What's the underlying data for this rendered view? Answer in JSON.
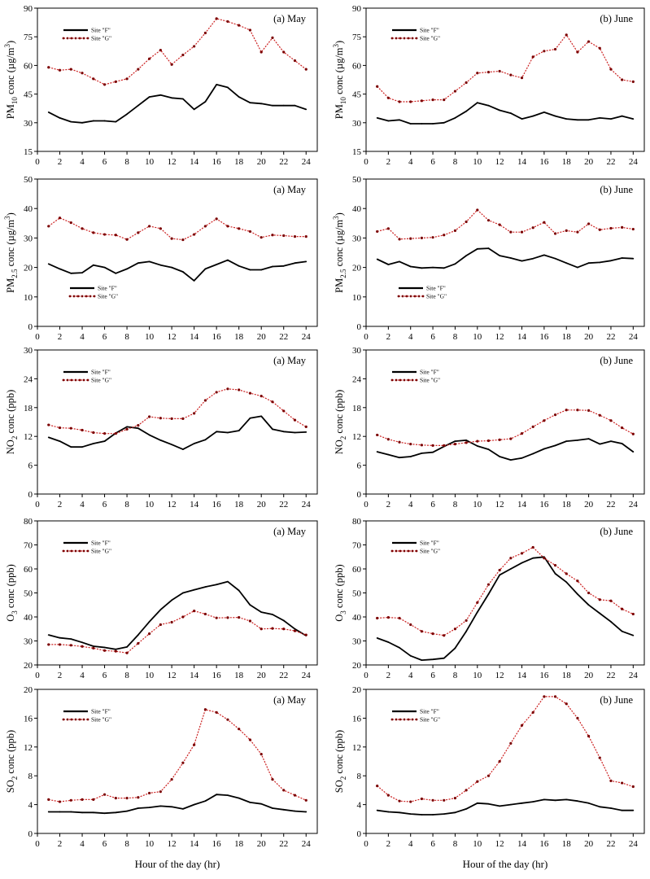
{
  "colors": {
    "site_f": "#000000",
    "site_g": "#cc2222",
    "marker_g": "#7a0000"
  },
  "chart_data": [
    {
      "type": "line",
      "row": 0,
      "col": 0,
      "title": "(a) May",
      "ylabel_pre": "PM",
      "ylabel_sub": "10",
      "ylabel_post": " conc (µg/m",
      "ylabel_sup": "3",
      "ylabel_end": ")",
      "xlabel": "",
      "ylim": [
        15,
        90
      ],
      "yticks": [
        15,
        30,
        45,
        60,
        75,
        90
      ],
      "xlim": [
        0,
        25
      ],
      "xticks": [
        0,
        2,
        4,
        6,
        8,
        10,
        12,
        14,
        16,
        18,
        20,
        22,
        24
      ],
      "legend_position": "top-left",
      "x": [
        1,
        2,
        3,
        4,
        5,
        6,
        7,
        8,
        9,
        10,
        11,
        12,
        13,
        14,
        15,
        16,
        17,
        18,
        19,
        20,
        21,
        22,
        23,
        24
      ],
      "series": [
        {
          "name": "Site \"F\"",
          "values": [
            35.5,
            32.5,
            30.5,
            30,
            31,
            31,
            30.5,
            34.5,
            39,
            43.5,
            44.5,
            43,
            42.5,
            37,
            41,
            50,
            48.5,
            43.5,
            40.5,
            40,
            39,
            39,
            39,
            37
          ]
        },
        {
          "name": "Site \"G\"",
          "values": [
            59,
            57.5,
            58,
            56,
            53,
            50,
            51.5,
            53,
            58,
            63.5,
            68,
            60.5,
            65.5,
            70,
            77,
            84.5,
            83,
            81,
            78.5,
            67,
            74.5,
            67,
            62.5,
            58
          ]
        }
      ]
    },
    {
      "type": "line",
      "row": 0,
      "col": 1,
      "title": "(b) June",
      "ylabel_pre": "PM",
      "ylabel_sub": "10",
      "ylabel_post": " conc (µg/m",
      "ylabel_sup": "3",
      "ylabel_end": ")",
      "xlabel": "",
      "ylim": [
        15,
        90
      ],
      "yticks": [
        15,
        30,
        45,
        60,
        75,
        90
      ],
      "xlim": [
        0,
        25
      ],
      "xticks": [
        0,
        2,
        4,
        6,
        8,
        10,
        12,
        14,
        16,
        18,
        20,
        22,
        24
      ],
      "legend_position": "top-left",
      "x": [
        1,
        2,
        3,
        4,
        5,
        6,
        7,
        8,
        9,
        10,
        11,
        12,
        13,
        14,
        15,
        16,
        17,
        18,
        19,
        20,
        21,
        22,
        23,
        24
      ],
      "series": [
        {
          "name": "Site \"F\"",
          "values": [
            32.5,
            31,
            31.5,
            29.5,
            29.5,
            29.5,
            30,
            32.5,
            36,
            40.5,
            39,
            36.5,
            35,
            32,
            33.5,
            35.5,
            33.5,
            32,
            31.5,
            31.5,
            32.5,
            32,
            33.5,
            32
          ]
        },
        {
          "name": "Site \"G\"",
          "values": [
            49,
            43,
            41,
            41,
            41.5,
            42,
            42,
            46.5,
            51,
            56,
            56.5,
            57,
            55,
            53.5,
            64.5,
            67.5,
            68.5,
            76,
            67,
            72.5,
            69,
            58,
            52.5,
            51.5
          ]
        }
      ]
    },
    {
      "type": "line",
      "row": 1,
      "col": 0,
      "title": "(a) May",
      "ylabel_pre": "PM",
      "ylabel_sub": "2.5",
      "ylabel_post": " conc (µg/m",
      "ylabel_sup": "3",
      "ylabel_end": ")",
      "xlabel": "",
      "ylim": [
        0,
        50
      ],
      "yticks": [
        0,
        10,
        20,
        30,
        40,
        50
      ],
      "xlim": [
        0,
        25
      ],
      "xticks": [
        0,
        2,
        4,
        6,
        8,
        10,
        12,
        14,
        16,
        18,
        20,
        22,
        24
      ],
      "legend_position": "bottom-left",
      "x": [
        1,
        2,
        3,
        4,
        5,
        6,
        7,
        8,
        9,
        10,
        11,
        12,
        13,
        14,
        15,
        16,
        17,
        18,
        19,
        20,
        21,
        22,
        23,
        24
      ],
      "series": [
        {
          "name": "Site \"F\"",
          "values": [
            21.2,
            19.5,
            18,
            18.2,
            20.8,
            20,
            18,
            19.5,
            21.5,
            22,
            20.8,
            20,
            18.5,
            15.5,
            19.5,
            21,
            22.5,
            20.5,
            19.2,
            19.2,
            20.3,
            20.5,
            21.5,
            22
          ]
        },
        {
          "name": "Site \"G\"",
          "values": [
            34,
            36.8,
            35.2,
            33.2,
            31.8,
            31.2,
            31,
            29.5,
            31.8,
            34,
            33.2,
            29.8,
            29.4,
            31.2,
            34,
            36.5,
            34,
            33.2,
            32.2,
            30.2,
            31,
            30.8,
            30.5,
            30.5
          ]
        }
      ]
    },
    {
      "type": "line",
      "row": 1,
      "col": 1,
      "title": "(b) June",
      "ylabel_pre": "PM",
      "ylabel_sub": "2.5",
      "ylabel_post": " conc (µg/m",
      "ylabel_sup": "3",
      "ylabel_end": ")",
      "xlabel": "",
      "ylim": [
        0,
        50
      ],
      "yticks": [
        0,
        10,
        20,
        30,
        40,
        50
      ],
      "xlim": [
        0,
        25
      ],
      "xticks": [
        0,
        2,
        4,
        6,
        8,
        10,
        12,
        14,
        16,
        18,
        20,
        22,
        24
      ],
      "legend_position": "bottom-left",
      "x": [
        1,
        2,
        3,
        4,
        5,
        6,
        7,
        8,
        9,
        10,
        11,
        12,
        13,
        14,
        15,
        16,
        17,
        18,
        19,
        20,
        21,
        22,
        23,
        24
      ],
      "series": [
        {
          "name": "Site \"F\"",
          "values": [
            22.8,
            21,
            22,
            20.3,
            19.8,
            20,
            19.8,
            21.2,
            24,
            26.3,
            26.5,
            24,
            23.2,
            22.2,
            23,
            24.2,
            23,
            21.5,
            20,
            21.5,
            21.7,
            22.3,
            23.2,
            23
          ]
        },
        {
          "name": "Site \"G\"",
          "values": [
            32.2,
            33.2,
            29.6,
            29.8,
            30,
            30.2,
            31,
            32.5,
            35.5,
            39.5,
            36,
            34.5,
            32,
            32,
            33.5,
            35.3,
            31.5,
            32.5,
            32,
            34.8,
            32.8,
            33.3,
            33.6,
            33
          ]
        }
      ]
    },
    {
      "type": "line",
      "row": 2,
      "col": 0,
      "title": "(a) May",
      "ylabel_pre": "NO",
      "ylabel_sub": "2",
      "ylabel_post": " conc (ppb)",
      "ylabel_sup": "",
      "ylabel_end": "",
      "xlabel": "",
      "ylim": [
        0,
        30
      ],
      "yticks": [
        0,
        6,
        12,
        18,
        24,
        30
      ],
      "xlim": [
        0,
        25
      ],
      "xticks": [
        0,
        2,
        4,
        6,
        8,
        10,
        12,
        14,
        16,
        18,
        20,
        22,
        24
      ],
      "legend_position": "top-left",
      "x": [
        1,
        2,
        3,
        4,
        5,
        6,
        7,
        8,
        9,
        10,
        11,
        12,
        13,
        14,
        15,
        16,
        17,
        18,
        19,
        20,
        21,
        22,
        23,
        24
      ],
      "series": [
        {
          "name": "Site \"F\"",
          "values": [
            11.8,
            11,
            9.8,
            9.8,
            10.5,
            11,
            12.7,
            14,
            13.7,
            12.3,
            11.2,
            10.3,
            9.3,
            10.5,
            11.3,
            13,
            12.8,
            13.2,
            15.8,
            16.2,
            13.5,
            13,
            12.8,
            12.9
          ]
        },
        {
          "name": "Site \"G\"",
          "values": [
            14.4,
            13.8,
            13.7,
            13.3,
            12.8,
            12.6,
            12.6,
            13.5,
            14.3,
            16.1,
            15.8,
            15.7,
            15.7,
            16.8,
            19.5,
            21.2,
            21.9,
            21.7,
            21,
            20.4,
            19.2,
            17.3,
            15.4,
            14
          ]
        }
      ]
    },
    {
      "type": "line",
      "row": 2,
      "col": 1,
      "title": "(b) June",
      "ylabel_pre": "NO",
      "ylabel_sub": "2",
      "ylabel_post": " conc (ppb)",
      "ylabel_sup": "",
      "ylabel_end": "",
      "xlabel": "",
      "ylim": [
        0,
        30
      ],
      "yticks": [
        0,
        6,
        12,
        18,
        24,
        30
      ],
      "xlim": [
        0,
        25
      ],
      "xticks": [
        0,
        2,
        4,
        6,
        8,
        10,
        12,
        14,
        16,
        18,
        20,
        22,
        24
      ],
      "legend_position": "top-left",
      "x": [
        1,
        2,
        3,
        4,
        5,
        6,
        7,
        8,
        9,
        10,
        11,
        12,
        13,
        14,
        15,
        16,
        17,
        18,
        19,
        20,
        21,
        22,
        23,
        24
      ],
      "series": [
        {
          "name": "Site \"F\"",
          "values": [
            8.8,
            8.2,
            7.6,
            7.8,
            8.5,
            8.7,
            9.9,
            11,
            11.2,
            10,
            9.3,
            7.8,
            7.1,
            7.5,
            8.4,
            9.4,
            10.1,
            11,
            11.2,
            11.5,
            10.4,
            11,
            10.5,
            8.8
          ]
        },
        {
          "name": "Site \"G\"",
          "values": [
            12.3,
            11.4,
            10.8,
            10.4,
            10.2,
            10.1,
            10.1,
            10.4,
            10.7,
            11,
            11.1,
            11.3,
            11.5,
            12.6,
            14,
            15.3,
            16.5,
            17.5,
            17.5,
            17.4,
            16.4,
            15.3,
            13.8,
            12.5
          ]
        }
      ]
    },
    {
      "type": "line",
      "row": 3,
      "col": 0,
      "title": "(a) May",
      "ylabel_pre": "O",
      "ylabel_sub": "3",
      "ylabel_post": " conc (ppb)",
      "ylabel_sup": "",
      "ylabel_end": "",
      "xlabel": "",
      "ylim": [
        20,
        80
      ],
      "yticks": [
        20,
        30,
        40,
        50,
        60,
        70,
        80
      ],
      "xlim": [
        0,
        25
      ],
      "xticks": [
        0,
        2,
        4,
        6,
        8,
        10,
        12,
        14,
        16,
        18,
        20,
        22,
        24
      ],
      "legend_position": "top-left",
      "x": [
        1,
        2,
        3,
        4,
        5,
        6,
        7,
        8,
        9,
        10,
        11,
        12,
        13,
        14,
        15,
        16,
        17,
        18,
        19,
        20,
        21,
        22,
        23,
        24
      ],
      "series": [
        {
          "name": "Site \"F\"",
          "values": [
            32.5,
            31.3,
            30.8,
            29.4,
            27.8,
            27.3,
            26.5,
            27.5,
            32.5,
            38,
            43,
            47,
            50,
            51.3,
            52.5,
            53.5,
            54.7,
            51,
            45,
            42,
            41,
            38.5,
            35,
            32.2
          ]
        },
        {
          "name": "Site \"G\"",
          "values": [
            28.5,
            28.5,
            28.2,
            27.7,
            27,
            26,
            25.7,
            25,
            29,
            33,
            36.8,
            37.8,
            40,
            42.5,
            41.2,
            39.6,
            39.7,
            39.8,
            38.3,
            35,
            35.2,
            35,
            34.2,
            32.5
          ]
        }
      ]
    },
    {
      "type": "line",
      "row": 3,
      "col": 1,
      "title": "(b) June",
      "ylabel_pre": "O",
      "ylabel_sub": "3",
      "ylabel_post": " conc (ppb)",
      "ylabel_sup": "",
      "ylabel_end": "",
      "xlabel": "",
      "ylim": [
        20,
        80
      ],
      "yticks": [
        20,
        30,
        40,
        50,
        60,
        70,
        80
      ],
      "xlim": [
        0,
        25
      ],
      "xticks": [
        0,
        2,
        4,
        6,
        8,
        10,
        12,
        14,
        16,
        18,
        20,
        22,
        24
      ],
      "legend_position": "top-left",
      "x": [
        1,
        2,
        3,
        4,
        5,
        6,
        7,
        8,
        9,
        10,
        11,
        12,
        13,
        14,
        15,
        16,
        17,
        18,
        19,
        20,
        21,
        22,
        23,
        24
      ],
      "series": [
        {
          "name": "Site \"F\"",
          "values": [
            31.2,
            29.5,
            27.2,
            23.8,
            22,
            22.3,
            22.8,
            27,
            34,
            42,
            49.5,
            57.5,
            60,
            62.5,
            64.5,
            65,
            58,
            54.5,
            49.5,
            45,
            41.5,
            38,
            34,
            32.3
          ]
        },
        {
          "name": "Site \"G\"",
          "values": [
            39.5,
            39.8,
            39.5,
            36.8,
            34,
            33,
            32.3,
            35,
            38.5,
            46,
            53.5,
            59.5,
            64.5,
            66.5,
            69,
            64.5,
            61.5,
            58,
            55,
            50,
            47.2,
            46.7,
            43.3,
            41.2
          ]
        }
      ]
    },
    {
      "type": "line",
      "row": 4,
      "col": 0,
      "title": "(a) May",
      "ylabel_pre": "SO",
      "ylabel_sub": "2",
      "ylabel_post": " conc (ppb)",
      "ylabel_sup": "",
      "ylabel_end": "",
      "xlabel": "Hour of the day (hr)",
      "ylim": [
        0,
        20
      ],
      "yticks": [
        0,
        4,
        8,
        12,
        16,
        20
      ],
      "xlim": [
        0,
        25
      ],
      "xticks": [
        0,
        2,
        4,
        6,
        8,
        10,
        12,
        14,
        16,
        18,
        20,
        22,
        24
      ],
      "legend_position": "top-left",
      "x": [
        1,
        2,
        3,
        4,
        5,
        6,
        7,
        8,
        9,
        10,
        11,
        12,
        13,
        14,
        15,
        16,
        17,
        18,
        19,
        20,
        21,
        22,
        23,
        24
      ],
      "series": [
        {
          "name": "Site \"F\"",
          "values": [
            3,
            3,
            3,
            2.9,
            2.9,
            2.8,
            2.9,
            3.1,
            3.5,
            3.6,
            3.8,
            3.7,
            3.4,
            4,
            4.5,
            5.4,
            5.3,
            4.9,
            4.3,
            4.1,
            3.5,
            3.3,
            3.1,
            3
          ]
        },
        {
          "name": "Site \"G\"",
          "values": [
            4.7,
            4.4,
            4.6,
            4.7,
            4.7,
            5.4,
            4.9,
            4.9,
            5,
            5.6,
            5.8,
            7.5,
            9.8,
            12.3,
            17.2,
            16.8,
            15.8,
            14.5,
            13,
            11,
            7.5,
            6,
            5.3,
            4.6
          ]
        }
      ]
    },
    {
      "type": "line",
      "row": 4,
      "col": 1,
      "title": "(b) June",
      "ylabel_pre": "SO",
      "ylabel_sub": "2",
      "ylabel_post": " conc (ppb)",
      "ylabel_sup": "",
      "ylabel_end": "",
      "xlabel": "Hour of the day (hr)",
      "ylim": [
        0,
        20
      ],
      "yticks": [
        0,
        4,
        8,
        12,
        16,
        20
      ],
      "xlim": [
        0,
        25
      ],
      "xticks": [
        0,
        2,
        4,
        6,
        8,
        10,
        12,
        14,
        16,
        18,
        20,
        22,
        24
      ],
      "legend_position": "top-left",
      "x": [
        1,
        2,
        3,
        4,
        5,
        6,
        7,
        8,
        9,
        10,
        11,
        12,
        13,
        14,
        15,
        16,
        17,
        18,
        19,
        20,
        21,
        22,
        23,
        24
      ],
      "series": [
        {
          "name": "Site \"F\"",
          "values": [
            3.2,
            3,
            2.9,
            2.7,
            2.6,
            2.6,
            2.7,
            2.9,
            3.4,
            4.2,
            4.1,
            3.8,
            4,
            4.2,
            4.4,
            4.7,
            4.6,
            4.7,
            4.5,
            4.2,
            3.7,
            3.5,
            3.2,
            3.2
          ]
        },
        {
          "name": "Site \"G\"",
          "values": [
            6.6,
            5.3,
            4.5,
            4.4,
            4.8,
            4.6,
            4.6,
            4.9,
            6,
            7.2,
            8,
            10,
            12.5,
            15,
            16.8,
            19,
            19,
            18,
            16,
            13.5,
            10.5,
            7.3,
            7,
            6.5
          ]
        }
      ]
    }
  ]
}
